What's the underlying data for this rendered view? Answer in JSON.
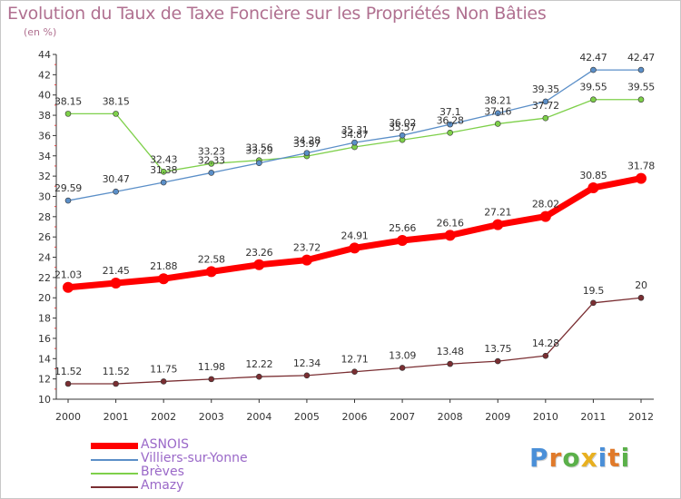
{
  "title": "Evolution du Taux de Taxe Foncière sur les Propriétés Non Bâties",
  "subtitle": "(en %)",
  "logo": {
    "text": "Proxiti",
    "letters": [
      {
        "ch": "P",
        "color": "#4a8fd8"
      },
      {
        "ch": "r",
        "color": "#e07a2a"
      },
      {
        "ch": "o",
        "color": "#5bb04a"
      },
      {
        "ch": "x",
        "color": "#e8b020"
      },
      {
        "ch": "i",
        "color": "#4a8fd8"
      },
      {
        "ch": "t",
        "color": "#e07a2a"
      },
      {
        "ch": "i",
        "color": "#5bb04a"
      }
    ]
  },
  "chart_data": {
    "type": "line",
    "x": [
      "2000",
      "2001",
      "2002",
      "2003",
      "2004",
      "2005",
      "2006",
      "2007",
      "2008",
      "2009",
      "2010",
      "2011",
      "2012"
    ],
    "ylim": [
      10,
      44
    ],
    "yticks": [
      10,
      12,
      14,
      16,
      18,
      20,
      22,
      24,
      26,
      28,
      30,
      32,
      34,
      36,
      38,
      40,
      42,
      44
    ],
    "grid": false,
    "legend_position": "bottom-left",
    "series": [
      {
        "name": "ASNOIS",
        "color": "#ff0000",
        "values": [
          21.03,
          21.45,
          21.88,
          22.58,
          23.26,
          23.72,
          24.91,
          25.66,
          26.16,
          27.21,
          28.02,
          30.85,
          31.78
        ],
        "labels": [
          "21.03",
          "21.45",
          "21.88",
          "22.58",
          "23.26",
          "23.72",
          "24.91",
          "25.66",
          "26.16",
          "27.21",
          "28.02",
          "30.85",
          "31.78"
        ]
      },
      {
        "name": "Villiers-sur-Yonne",
        "color": "#5b8fc8",
        "values": [
          29.59,
          30.47,
          31.38,
          32.33,
          33.29,
          34.28,
          35.31,
          36.02,
          37.1,
          38.21,
          39.35,
          42.47,
          42.47
        ],
        "labels": [
          "29.59",
          "30.47",
          "31.38",
          "32.33",
          "33.29",
          "34.28",
          "35.31",
          "36.02",
          "37.1",
          "38.21",
          "39.35",
          "42.47",
          "42.47"
        ]
      },
      {
        "name": "Brèves",
        "color": "#7ed04a",
        "values": [
          38.15,
          38.15,
          32.43,
          33.23,
          33.56,
          33.97,
          34.87,
          35.57,
          36.28,
          37.16,
          37.72,
          39.55,
          39.55
        ],
        "labels": [
          "38.15",
          "38.15",
          "32.43",
          "33.23",
          "33.56",
          "33.97",
          "34.87",
          "35.57",
          "36.28",
          "37.16",
          "37.72",
          "39.55",
          "39.55"
        ]
      },
      {
        "name": "Amazy",
        "color": "#7a2e32",
        "values": [
          11.52,
          11.52,
          11.75,
          11.98,
          12.22,
          12.34,
          12.71,
          13.09,
          13.48,
          13.75,
          14.28,
          19.5,
          20
        ],
        "labels": [
          "11.52",
          "11.52",
          "11.75",
          "11.98",
          "12.22",
          "12.34",
          "12.71",
          "13.09",
          "13.48",
          "13.75",
          "14.28",
          "19.5",
          "20"
        ]
      }
    ]
  }
}
